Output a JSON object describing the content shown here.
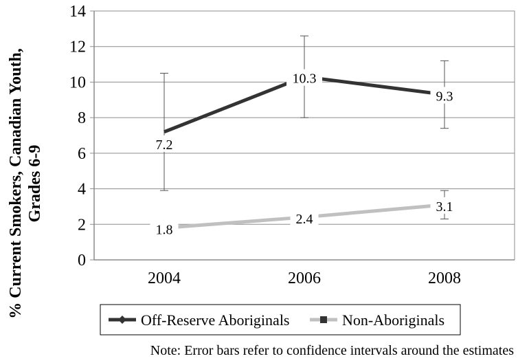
{
  "chart_data": {
    "type": "line",
    "ylabel_lines": [
      "% Current Smokers, Canadian Youth,",
      "Grades 6-9"
    ],
    "x": [
      "2004",
      "2006",
      "2008"
    ],
    "ylim": [
      0,
      14
    ],
    "yticks": [
      "0",
      "2",
      "4",
      "6",
      "8",
      "10",
      "12",
      "14"
    ],
    "grid": true,
    "legend_position": "bottom",
    "series": [
      {
        "name": "Off-Reserve Aboriginals",
        "color": "#333333",
        "marker": "diamond",
        "values": [
          7.2,
          10.3,
          9.3
        ],
        "labels": [
          "7.2",
          "10.3",
          "9.3"
        ],
        "error_low": [
          3.9,
          8.0,
          7.4
        ],
        "error_high": [
          10.5,
          12.6,
          11.2
        ]
      },
      {
        "name": "Non-Aboriginals",
        "color": "#c0c0c0",
        "marker": "square",
        "values": [
          1.8,
          2.4,
          3.1
        ],
        "labels": [
          "1.8",
          "2.4",
          "3.1"
        ],
        "error_low": [
          1.7,
          2.2,
          2.3
        ],
        "error_high": [
          2.0,
          2.6,
          3.9
        ]
      }
    ],
    "note": "Note: Error bars refer to confidence intervals around the estimates"
  }
}
